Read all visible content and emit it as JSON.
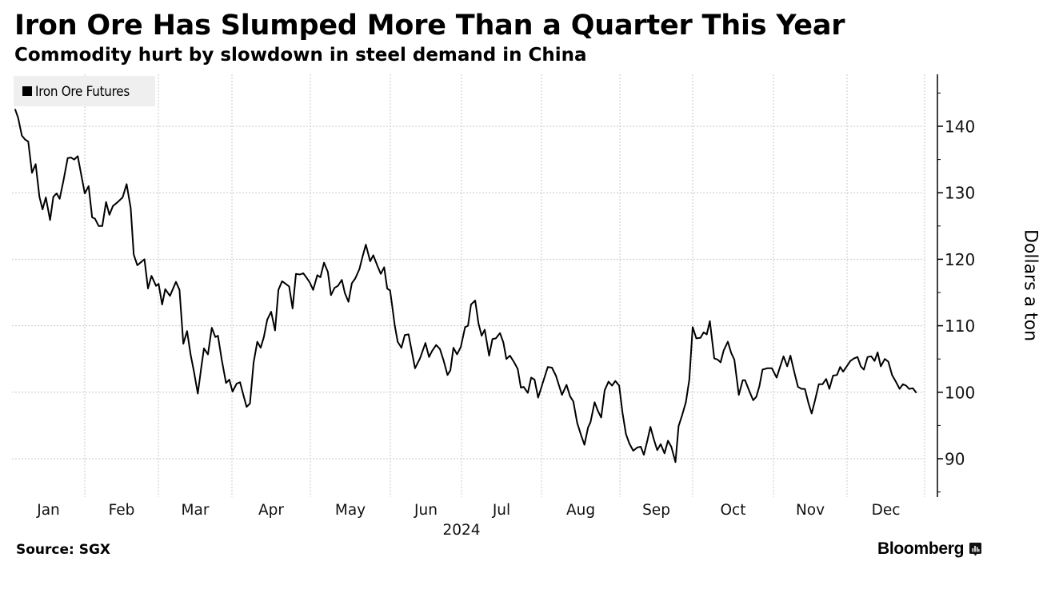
{
  "header": {
    "title": "Iron Ore Has Slumped More Than a Quarter This Year",
    "subtitle": "Commodity hurt by slowdown in steel demand in China"
  },
  "footer": {
    "source": "Source: SGX",
    "brand": "Bloomberg",
    "brand_icon": "bloomberg-chart-icon"
  },
  "chart_data": {
    "type": "line",
    "title": "Iron Ore Has Slumped More Than a Quarter This Year",
    "subtitle": "Commodity hurt by slowdown in steel demand in China",
    "xlabel": "2024",
    "ylabel": "Dollars a ton",
    "x_unit": "day of year 2024",
    "xlim": [
      0,
      366
    ],
    "ylim": [
      85,
      148
    ],
    "y_axis_position": "right",
    "y_ticks": [
      90,
      100,
      110,
      120,
      130,
      140
    ],
    "y_minor_ticks": [
      85,
      95,
      105,
      115,
      125,
      135,
      145
    ],
    "x_ticks": [
      {
        "label": "Jan",
        "start": 0,
        "end": 31
      },
      {
        "label": "Feb",
        "start": 31,
        "end": 60
      },
      {
        "label": "Mar",
        "start": 60,
        "end": 91
      },
      {
        "label": "Apr",
        "start": 91,
        "end": 121
      },
      {
        "label": "May",
        "start": 121,
        "end": 152
      },
      {
        "label": "Jun",
        "start": 152,
        "end": 182
      },
      {
        "label": "Jul",
        "start": 182,
        "end": 213
      },
      {
        "label": "Aug",
        "start": 213,
        "end": 244
      },
      {
        "label": "Sep",
        "start": 244,
        "end": 274
      },
      {
        "label": "Oct",
        "start": 274,
        "end": 305
      },
      {
        "label": "Nov",
        "start": 305,
        "end": 335
      },
      {
        "label": "Dec",
        "start": 335,
        "end": 366
      }
    ],
    "year_label": "2024",
    "grid": true,
    "legend": {
      "position": "top-left",
      "entries": [
        "Iron Ore Futures"
      ]
    },
    "series": [
      {
        "name": "Iron Ore Futures",
        "color": "#000000",
        "points": [
          [
            1.3,
            142.6
          ],
          [
            2.6,
            141.3
          ],
          [
            4.2,
            138.6
          ],
          [
            5.6,
            138.0
          ],
          [
            6.9,
            137.7
          ],
          [
            8.5,
            133.0
          ],
          [
            10.1,
            134.3
          ],
          [
            11.7,
            129.4
          ],
          [
            13.0,
            127.5
          ],
          [
            14.4,
            129.3
          ],
          [
            16.2,
            125.9
          ],
          [
            17.6,
            129.4
          ],
          [
            19.0,
            129.9
          ],
          [
            20.3,
            129.1
          ],
          [
            21.9,
            131.8
          ],
          [
            23.7,
            135.2
          ],
          [
            25.1,
            135.3
          ],
          [
            26.5,
            135.0
          ],
          [
            28.0,
            135.5
          ],
          [
            29.6,
            132.5
          ],
          [
            31.0,
            129.9
          ],
          [
            32.5,
            131.0
          ],
          [
            33.9,
            126.3
          ],
          [
            35.0,
            126.1
          ],
          [
            36.5,
            125.0
          ],
          [
            37.9,
            125.0
          ],
          [
            39.4,
            128.6
          ],
          [
            40.7,
            126.7
          ],
          [
            42.1,
            128.0
          ],
          [
            44.0,
            128.6
          ],
          [
            45.9,
            129.3
          ],
          [
            47.5,
            131.3
          ],
          [
            49.1,
            127.7
          ],
          [
            50.3,
            120.7
          ],
          [
            51.7,
            119.1
          ],
          [
            53.3,
            119.6
          ],
          [
            54.5,
            120.0
          ],
          [
            55.9,
            115.6
          ],
          [
            57.3,
            117.5
          ],
          [
            59.1,
            116.0
          ],
          [
            60.1,
            116.3
          ],
          [
            61.6,
            113.2
          ],
          [
            62.9,
            115.5
          ],
          [
            64.9,
            114.5
          ],
          [
            67.4,
            116.6
          ],
          [
            68.9,
            115.4
          ],
          [
            70.5,
            107.3
          ],
          [
            72.1,
            109.2
          ],
          [
            73.6,
            105.6
          ],
          [
            75.0,
            103.1
          ],
          [
            76.6,
            99.8
          ],
          [
            78.1,
            103.8
          ],
          [
            79.2,
            106.6
          ],
          [
            80.9,
            105.7
          ],
          [
            82.5,
            109.7
          ],
          [
            84.0,
            108.3
          ],
          [
            85.1,
            108.5
          ],
          [
            86.7,
            104.9
          ],
          [
            88.5,
            101.4
          ],
          [
            89.9,
            101.9
          ],
          [
            91.2,
            100.1
          ],
          [
            92.8,
            101.3
          ],
          [
            94.1,
            101.5
          ],
          [
            95.3,
            99.7
          ],
          [
            96.6,
            97.8
          ],
          [
            97.9,
            98.3
          ],
          [
            99.3,
            104.5
          ],
          [
            100.7,
            107.6
          ],
          [
            102.0,
            106.7
          ],
          [
            103.2,
            108.3
          ],
          [
            104.5,
            110.9
          ],
          [
            106.0,
            112.1
          ],
          [
            107.5,
            109.3
          ],
          [
            108.8,
            115.4
          ],
          [
            110.2,
            116.7
          ],
          [
            111.6,
            116.3
          ],
          [
            112.9,
            115.9
          ],
          [
            114.2,
            112.6
          ],
          [
            115.5,
            117.8
          ],
          [
            117.0,
            117.7
          ],
          [
            118.3,
            117.9
          ],
          [
            119.6,
            117.2
          ],
          [
            120.8,
            116.5
          ],
          [
            122.1,
            115.4
          ],
          [
            123.7,
            117.6
          ],
          [
            124.9,
            117.3
          ],
          [
            126.3,
            119.5
          ],
          [
            127.8,
            118.1
          ],
          [
            129.0,
            114.6
          ],
          [
            130.4,
            115.7
          ],
          [
            131.7,
            116.0
          ],
          [
            133.2,
            116.9
          ],
          [
            134.4,
            114.9
          ],
          [
            135.8,
            113.6
          ],
          [
            137.1,
            116.4
          ],
          [
            138.4,
            117.1
          ],
          [
            140.0,
            118.5
          ],
          [
            141.3,
            120.5
          ],
          [
            142.5,
            122.2
          ],
          [
            144.2,
            119.7
          ],
          [
            145.4,
            120.6
          ],
          [
            147.0,
            119.0
          ],
          [
            148.3,
            117.8
          ],
          [
            149.6,
            118.8
          ],
          [
            150.8,
            115.6
          ],
          [
            151.9,
            115.3
          ],
          [
            152.7,
            113.2
          ],
          [
            153.9,
            110.0
          ],
          [
            155.1,
            107.6
          ],
          [
            156.7,
            106.7
          ],
          [
            158.1,
            108.6
          ],
          [
            159.7,
            108.7
          ],
          [
            162.4,
            103.6
          ],
          [
            164.5,
            105.1
          ],
          [
            166.8,
            107.4
          ],
          [
            168.3,
            105.3
          ],
          [
            169.6,
            106.2
          ],
          [
            171.3,
            107.1
          ],
          [
            172.9,
            106.5
          ],
          [
            174.5,
            104.7
          ],
          [
            176.1,
            102.6
          ],
          [
            177.3,
            103.3
          ],
          [
            178.6,
            106.7
          ],
          [
            180.1,
            105.7
          ],
          [
            181.7,
            106.8
          ],
          [
            183.4,
            109.8
          ],
          [
            184.5,
            110.0
          ],
          [
            185.7,
            113.2
          ],
          [
            187.3,
            113.8
          ],
          [
            188.6,
            110.3
          ],
          [
            189.8,
            108.5
          ],
          [
            191.0,
            109.4
          ],
          [
            192.7,
            105.5
          ],
          [
            194.0,
            108.0
          ],
          [
            195.3,
            108.1
          ],
          [
            196.9,
            108.9
          ],
          [
            198.2,
            107.5
          ],
          [
            199.4,
            105.0
          ],
          [
            200.8,
            105.5
          ],
          [
            202.4,
            104.5
          ],
          [
            203.8,
            103.5
          ],
          [
            205.0,
            100.7
          ],
          [
            206.1,
            100.8
          ],
          [
            207.7,
            99.9
          ],
          [
            209.0,
            102.2
          ],
          [
            210.3,
            101.9
          ],
          [
            211.7,
            99.2
          ],
          [
            213.4,
            101.3
          ],
          [
            215.5,
            103.8
          ],
          [
            217.1,
            103.7
          ],
          [
            218.7,
            102.5
          ],
          [
            221.1,
            99.6
          ],
          [
            222.9,
            101.1
          ],
          [
            224.3,
            99.4
          ],
          [
            225.6,
            98.6
          ],
          [
            227.1,
            95.4
          ],
          [
            228.7,
            93.5
          ],
          [
            230.0,
            92.1
          ],
          [
            231.4,
            94.7
          ],
          [
            232.4,
            95.5
          ],
          [
            234.0,
            98.5
          ],
          [
            235.3,
            97.2
          ],
          [
            236.6,
            96.2
          ],
          [
            238.0,
            100.3
          ],
          [
            239.5,
            101.6
          ],
          [
            240.9,
            101.0
          ],
          [
            242.2,
            101.7
          ],
          [
            243.7,
            101.0
          ],
          [
            245.1,
            96.9
          ],
          [
            246.5,
            93.7
          ],
          [
            247.9,
            92.3
          ],
          [
            249.5,
            91.2
          ],
          [
            251.2,
            91.7
          ],
          [
            252.6,
            91.8
          ],
          [
            253.9,
            90.6
          ],
          [
            255.3,
            92.7
          ],
          [
            256.6,
            94.8
          ],
          [
            258.0,
            92.9
          ],
          [
            259.4,
            91.3
          ],
          [
            260.8,
            92.2
          ],
          [
            262.4,
            90.8
          ],
          [
            263.8,
            92.7
          ],
          [
            265.2,
            91.8
          ],
          [
            266.9,
            89.5
          ],
          [
            268.2,
            94.9
          ],
          [
            269.6,
            96.5
          ],
          [
            271.2,
            98.5
          ],
          [
            272.6,
            101.9
          ],
          [
            274.0,
            109.8
          ],
          [
            275.4,
            108.1
          ],
          [
            277.0,
            108.2
          ],
          [
            278.2,
            109.0
          ],
          [
            279.4,
            108.7
          ],
          [
            280.6,
            110.7
          ],
          [
            282.3,
            105.1
          ],
          [
            283.6,
            104.9
          ],
          [
            284.7,
            104.5
          ],
          [
            285.9,
            106.3
          ],
          [
            287.5,
            107.6
          ],
          [
            288.8,
            105.9
          ],
          [
            290.0,
            104.9
          ],
          [
            291.7,
            99.6
          ],
          [
            293.2,
            101.8
          ],
          [
            294.1,
            101.8
          ],
          [
            295.6,
            100.3
          ],
          [
            297.2,
            98.8
          ],
          [
            298.4,
            99.3
          ],
          [
            299.6,
            100.9
          ],
          [
            300.8,
            103.4
          ],
          [
            302.6,
            103.6
          ],
          [
            304.4,
            103.6
          ],
          [
            306.3,
            102.2
          ],
          [
            307.5,
            103.6
          ],
          [
            309.1,
            105.4
          ],
          [
            310.6,
            103.9
          ],
          [
            311.9,
            105.5
          ],
          [
            313.7,
            102.7
          ],
          [
            315.0,
            100.8
          ],
          [
            316.5,
            100.5
          ],
          [
            317.8,
            100.5
          ],
          [
            319.3,
            98.3
          ],
          [
            320.6,
            96.8
          ],
          [
            321.9,
            98.7
          ],
          [
            323.5,
            101.2
          ],
          [
            325.0,
            101.2
          ],
          [
            326.5,
            102.0
          ],
          [
            327.8,
            100.5
          ],
          [
            329.3,
            102.5
          ],
          [
            330.9,
            102.6
          ],
          [
            332.2,
            103.8
          ],
          [
            333.4,
            103.1
          ],
          [
            334.7,
            103.8
          ],
          [
            336.3,
            104.7
          ],
          [
            337.8,
            105.1
          ],
          [
            339.2,
            105.3
          ],
          [
            340.5,
            103.9
          ],
          [
            341.7,
            103.4
          ],
          [
            343.2,
            105.3
          ],
          [
            344.7,
            105.4
          ],
          [
            346.0,
            104.7
          ],
          [
            347.2,
            106.0
          ],
          [
            348.5,
            103.9
          ],
          [
            350.1,
            105.0
          ],
          [
            351.5,
            104.6
          ],
          [
            353.0,
            102.6
          ],
          [
            354.5,
            101.6
          ],
          [
            356.0,
            100.5
          ],
          [
            357.3,
            101.2
          ],
          [
            358.6,
            101.0
          ],
          [
            359.8,
            100.5
          ],
          [
            361.3,
            100.6
          ],
          [
            362.7,
            99.9
          ]
        ]
      }
    ]
  }
}
